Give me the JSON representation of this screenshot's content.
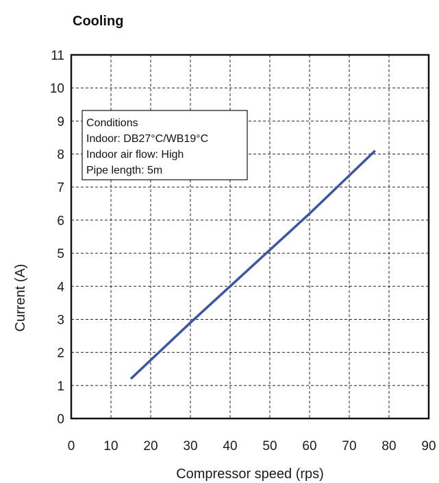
{
  "chart_data": {
    "type": "line",
    "title": "Cooling",
    "xlabel": "Compressor speed (rps)",
    "ylabel": "Current (A)",
    "xlim": [
      0,
      90
    ],
    "ylim": [
      0,
      11
    ],
    "xticks": [
      0,
      10,
      20,
      30,
      40,
      50,
      60,
      70,
      80,
      90
    ],
    "yticks": [
      0,
      1,
      2,
      3,
      4,
      5,
      6,
      7,
      8,
      9,
      10,
      11
    ],
    "grid": true,
    "series": [
      {
        "x": [
          15,
          30,
          40,
          50,
          60,
          76.5
        ],
        "y": [
          1.2,
          2.9,
          4.0,
          5.1,
          6.2,
          8.1
        ]
      }
    ],
    "annotation": {
      "lines": [
        "Conditions",
        "Indoor: DB27°C/WB19°C",
        "Indoor air flow: High",
        "Pipe length: 5m"
      ],
      "placement": "top-left"
    },
    "colors": {
      "line": "#3a55a4",
      "grid": "#222222",
      "frame": "#111111"
    }
  }
}
